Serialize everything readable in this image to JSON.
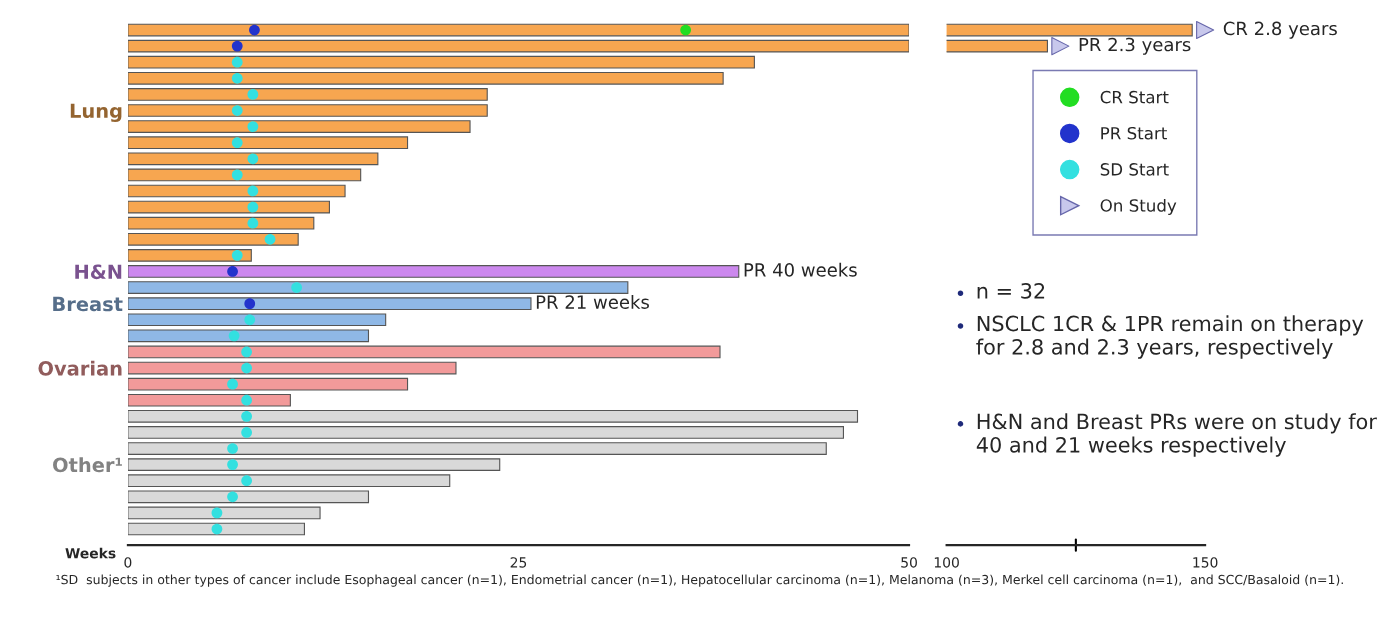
{
  "chart_data": [
    {
      "type": "bar",
      "orientation": "horizontal",
      "xlabel": "Weeks",
      "xlim": [
        0,
        50
      ],
      "xticks": [
        0,
        25,
        50
      ],
      "tick_labels": "xy",
      "grid": false,
      "legend": "right",
      "categories": [
        null,
        null,
        null,
        null,
        null,
        "Lung",
        null,
        null,
        null,
        null,
        null,
        null,
        null,
        null,
        null,
        "H&N",
        null,
        "Breast",
        null,
        null,
        null,
        "Ovarian",
        null,
        null,
        null,
        null,
        null,
        "Other¹",
        null,
        null,
        null,
        null
      ],
      "series": [
        {
          "type": "bar",
          "colors": [
            "#f7a650",
            "#f7a650",
            "#f7a650",
            "#f7a650",
            "#f7a650",
            "#f7a650",
            "#f7a650",
            "#f7a650",
            "#f7a650",
            "#f7a650",
            "#f7a650",
            "#f7a650",
            "#f7a650",
            "#f7a650",
            "#f7a650",
            "#cc88ee",
            "#8fb8e6",
            "#8fb8e6",
            "#8fb8e6",
            "#8fb8e6",
            "#f29a9a",
            "#f29a9a",
            "#f29a9a",
            "#f29a9a",
            "#d9d9d9",
            "#d9d9d9",
            "#d9d9d9",
            "#d9d9d9",
            "#d9d9d9",
            "#d9d9d9",
            "#d9d9d9",
            "#d9d9d9"
          ],
          "values": [
            50,
            50,
            40.1,
            38.1,
            23,
            23,
            21.9,
            17.9,
            16,
            14.9,
            13.9,
            12.9,
            11.9,
            10.9,
            7.9,
            39.1,
            32,
            25.8,
            16.5,
            15.4,
            37.9,
            21,
            17.9,
            10.4,
            46.7,
            45.8,
            44.7,
            23.8,
            20.6,
            15.4,
            12.3,
            11.3
          ]
        },
        {
          "type": "scatter",
          "name": "CR Start",
          "color": "#22dd22",
          "marker": "circle",
          "values": [
            35.7,
            null,
            null,
            null,
            null,
            null,
            null,
            null,
            null,
            null,
            null,
            null,
            null,
            null,
            null,
            null,
            null,
            null,
            null,
            null,
            null,
            null,
            null,
            null,
            null,
            null,
            null,
            null,
            null,
            null,
            null,
            null
          ]
        },
        {
          "type": "scatter",
          "name": "PR Start",
          "color": "#2233cc",
          "marker": "circle",
          "values": [
            8.1,
            7,
            null,
            null,
            null,
            null,
            null,
            null,
            null,
            null,
            null,
            null,
            null,
            null,
            null,
            6.7,
            null,
            7.8,
            null,
            null,
            null,
            null,
            null,
            null,
            null,
            null,
            null,
            null,
            null,
            null,
            null,
            null
          ]
        },
        {
          "type": "scatter",
          "name": "SD Start",
          "color": "#33e0e0",
          "marker": "circle",
          "values": [
            null,
            null,
            7,
            7,
            8,
            7,
            8,
            7,
            8,
            7,
            8,
            8,
            8,
            9.1,
            7,
            null,
            10.8,
            null,
            7.8,
            6.8,
            7.6,
            7.6,
            6.7,
            7.6,
            7.6,
            7.6,
            6.7,
            6.7,
            7.6,
            6.7,
            5.7,
            5.7
          ]
        }
      ],
      "annotations": [
        {
          "text": "PR 40 weeks",
          "x": 39.1
        },
        {
          "text": "PR 21 weeks",
          "x": 25.8
        },
        "¹SD  subjects in other types of cancer include Esophageal cancer (n=1), Endometrial cancer (n=1), Hepatocellular carcinoma (n=1), Melanoma (n=3), Merkel cell carcinoma (n=1),  and SCC/Basaloid (n=1)."
      ]
    },
    {
      "type": "bar",
      "orientation": "horizontal",
      "xlim": [
        100,
        150
      ],
      "xticks": [
        100,
        {
          "value": 125,
          "label": null
        },
        150
      ],
      "tick_labels": "x",
      "grid": false,
      "legend": "right",
      "categories": [
        null,
        null,
        null,
        null,
        null,
        null,
        null,
        null,
        null,
        null,
        null,
        null,
        null,
        null,
        null,
        null,
        null,
        null,
        null,
        null,
        null,
        null,
        null,
        null,
        null,
        null,
        null,
        null,
        null,
        null,
        null,
        null
      ],
      "series": [
        {
          "type": "bar",
          "color": "#f7a650",
          "values": [
            147.5,
            119.5,
            null,
            null,
            null,
            null,
            null,
            null,
            null,
            null,
            null,
            null,
            null,
            null,
            null,
            null,
            null,
            null,
            null,
            null,
            null,
            null,
            null,
            null,
            null,
            null,
            null,
            null,
            null,
            null,
            null,
            null
          ]
        },
        {
          "type": "scatter",
          "name": "On Study",
          "color": "#c8c8ec",
          "marker": "triangle",
          "values": [
            150,
            122,
            null,
            null,
            null,
            null,
            null,
            null,
            null,
            null,
            null,
            null,
            null,
            null,
            null,
            null,
            null,
            null,
            null,
            null,
            null,
            null,
            null,
            null,
            null,
            null,
            null,
            null,
            null,
            null,
            null,
            null
          ]
        }
      ],
      "annotations": [
        {
          "text": "CR 2.8 years",
          "x": 147.5
        },
        {
          "text": "PR 2.3 years",
          "x": 119.5
        },
        "n = 32",
        "NSCLC 1CR & 1PR remain on therapy for 2.8 and 2.3 years, respectively",
        "H&N and Breast PRs were on study for 40 and 21 weeks respectively"
      ]
    }
  ]
}
